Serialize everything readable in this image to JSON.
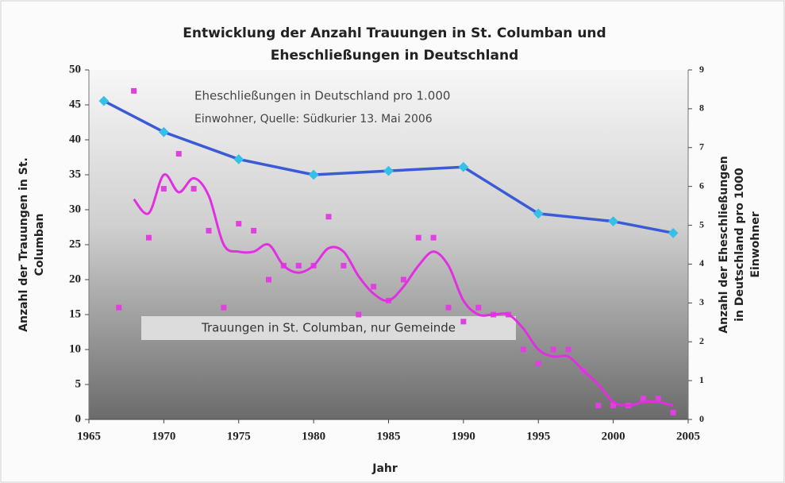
{
  "chart_data": {
    "type": "line",
    "title": [
      "Entwicklung der Anzahl Trauungen in St. Columban und",
      "Eheschließungen in Deutschland"
    ],
    "x_label": "Jahr",
    "y_label": [
      "Anzahl der Trauungen in St.",
      "Columban"
    ],
    "y2_label": [
      "Anzahl der Eheschließungen",
      "in Deutschland pro 1000",
      "Einwohner"
    ],
    "annotations": [
      "Eheschließungen in Deutschland pro 1.000",
      "Einwohner, Quelle: Südkurier 13. Mai 2006",
      "Trauungen in St. Columban, nur Gemeinde"
    ],
    "xlim": [
      1965,
      2005
    ],
    "xticks": [
      1965,
      1970,
      1975,
      1980,
      1985,
      1990,
      1995,
      2000,
      2005
    ],
    "ylim": [
      0,
      50
    ],
    "yticks": [
      0,
      5,
      10,
      15,
      20,
      25,
      30,
      35,
      40,
      45,
      50
    ],
    "y2lim": [
      0,
      9
    ],
    "y2ticks": [
      0,
      1,
      2,
      3,
      4,
      5,
      6,
      7,
      8,
      9
    ],
    "series": [
      {
        "style": "line-markers",
        "color": "#3b5bd6",
        "marker_color": "#35c0e8",
        "axis": "y2",
        "x": [
          1966,
          1970,
          1975,
          1980,
          1985,
          1990,
          1995,
          2000,
          2004
        ],
        "values": [
          8.2,
          7.4,
          6.7,
          6.3,
          6.4,
          6.5,
          5.3,
          5.1,
          4.8
        ]
      },
      {
        "style": "scatter",
        "color": "#e040e0",
        "x": [
          1967,
          1968,
          1969,
          1970,
          1971,
          1972,
          1973,
          1974,
          1975,
          1976,
          1977,
          1978,
          1979,
          1980,
          1981,
          1982,
          1983,
          1984,
          1985,
          1986,
          1987,
          1988,
          1989,
          1990,
          1991,
          1992,
          1993,
          1994,
          1995,
          1996,
          1997,
          1998,
          1999,
          2000,
          2001,
          2002,
          2003,
          2004
        ],
        "values": [
          16,
          47,
          26,
          33,
          38,
          33,
          27,
          16,
          28,
          27,
          20,
          22,
          22,
          22,
          29,
          22,
          15,
          19,
          17,
          20,
          26,
          26,
          16,
          14,
          16,
          15,
          15,
          10,
          8,
          10,
          10,
          7,
          2,
          2,
          2,
          3,
          3,
          1
        ]
      },
      {
        "style": "smooth",
        "color": "#e030e0",
        "x": [
          1968,
          1969,
          1970,
          1971,
          1972,
          1973,
          1974,
          1975,
          1976,
          1977,
          1978,
          1979,
          1980,
          1981,
          1982,
          1983,
          1984,
          1985,
          1986,
          1987,
          1988,
          1989,
          1990,
          1991,
          1992,
          1993,
          1994,
          1995,
          1996,
          1997,
          1998,
          1999,
          2000,
          2001,
          2002,
          2003,
          2004
        ],
        "values": [
          31.5,
          29.5,
          35,
          32.5,
          34.5,
          32,
          25,
          24,
          24,
          25,
          22,
          21,
          22,
          24.5,
          24,
          20.5,
          18,
          17,
          19,
          22,
          24,
          22,
          17,
          15,
          15,
          15,
          13,
          10,
          9,
          9,
          7,
          5,
          2.5,
          2,
          2.5,
          2.5,
          2
        ]
      }
    ]
  }
}
